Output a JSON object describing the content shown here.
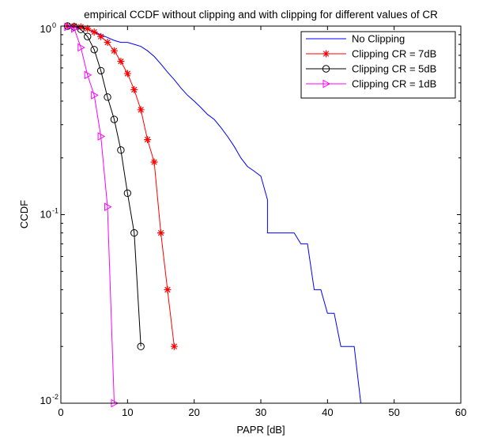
{
  "chart_data": {
    "type": "line",
    "title": "empirical CCDF without clipping and with clipping for different values of CR",
    "xlabel": "PAPR [dB]",
    "ylabel": "CCDF",
    "xlim": [
      0,
      60
    ],
    "ylim": [
      0.01,
      1
    ],
    "yscale": "log",
    "grid": false,
    "legend_position": "top-right",
    "xticks": [
      0,
      10,
      20,
      30,
      40,
      50,
      60
    ],
    "yticks": [
      {
        "value": 0.01,
        "base": "10",
        "exp": "-2"
      },
      {
        "value": 0.1,
        "base": "10",
        "exp": "-1"
      },
      {
        "value": 1,
        "base": "10",
        "exp": "0"
      }
    ],
    "series": [
      {
        "name": "No Clipping",
        "color": "#0000ff",
        "marker": "none",
        "x": [
          0,
          1,
          2,
          3,
          4,
          5,
          6,
          7,
          8,
          9,
          10,
          11,
          12,
          13,
          14,
          15,
          16,
          17,
          18,
          19,
          20,
          21,
          22,
          23,
          24,
          25,
          26,
          27,
          28,
          29,
          30,
          31,
          31,
          33,
          35,
          36,
          37,
          38,
          38,
          39,
          40,
          41,
          42,
          43,
          44,
          45,
          46,
          47,
          48,
          49,
          50,
          60
        ],
        "y": [
          1,
          1,
          0.99,
          0.98,
          0.96,
          0.93,
          0.9,
          0.87,
          0.84,
          0.82,
          0.82,
          0.8,
          0.78,
          0.74,
          0.69,
          0.63,
          0.57,
          0.52,
          0.47,
          0.43,
          0.4,
          0.37,
          0.34,
          0.32,
          0.29,
          0.26,
          0.23,
          0.2,
          0.18,
          0.17,
          0.16,
          0.12,
          0.08,
          0.08,
          0.08,
          0.07,
          0.07,
          0.04,
          0.04,
          0.04,
          0.03,
          0.03,
          0.02,
          0.02,
          0.02,
          0.01,
          0.01,
          0.01,
          0.01,
          0.01,
          0.01,
          0.01
        ]
      },
      {
        "name": "Clipping CR = 7dB",
        "color": "#ff0000",
        "marker": "star",
        "x": [
          1,
          2,
          3,
          4,
          5,
          6,
          7,
          8,
          9,
          10,
          11,
          12,
          13,
          14,
          15,
          16,
          17
        ],
        "y": [
          1,
          1,
          0.99,
          0.97,
          0.93,
          0.88,
          0.82,
          0.74,
          0.65,
          0.56,
          0.46,
          0.36,
          0.25,
          0.19,
          0.08,
          0.04,
          0.02
        ]
      },
      {
        "name": "Clipping CR = 5dB",
        "color": "#000000",
        "marker": "circle",
        "x": [
          1,
          2,
          3,
          4,
          5,
          6,
          7,
          8,
          9,
          10,
          11,
          12
        ],
        "y": [
          1,
          0.99,
          0.96,
          0.88,
          0.75,
          0.58,
          0.42,
          0.32,
          0.22,
          0.13,
          0.08,
          0.02
        ]
      },
      {
        "name": "Clipping CR = 1dB",
        "color": "#ff00ff",
        "marker": "triangle-right",
        "x": [
          1,
          2,
          3,
          4,
          5,
          6,
          7,
          8
        ],
        "y": [
          0.99,
          0.97,
          0.77,
          0.55,
          0.43,
          0.26,
          0.11,
          0.01
        ]
      }
    ]
  }
}
